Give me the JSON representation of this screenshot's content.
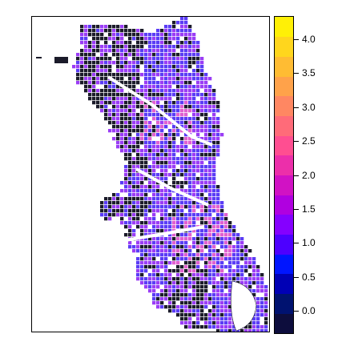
{
  "map": {
    "title": "",
    "colors": {
      "street": "#1b1b2a",
      "low": "#5a3cf5",
      "mid": "#9a3cf5",
      "high": "#e060d0",
      "water": "#ffffff"
    }
  },
  "legend": {
    "ticks": [
      "0.0",
      "0.5",
      "1.0",
      "1.5",
      "2.0",
      "2.5",
      "3.0",
      "3.5",
      "4.0"
    ],
    "tick_values": [
      0.0,
      0.5,
      1.0,
      1.5,
      2.0,
      2.5,
      3.0,
      3.5,
      4.0
    ],
    "range": [
      -0.33,
      4.33
    ],
    "swatches": [
      "#0d0d3d",
      "#001270",
      "#0000b5",
      "#0015ff",
      "#4d00ff",
      "#8500ff",
      "#b000e0",
      "#d112c4",
      "#ec2faa",
      "#ff4e91",
      "#ff6b79",
      "#ff8762",
      "#ffa24a",
      "#ffbc33",
      "#ffd61d",
      "#fff006"
    ]
  }
}
